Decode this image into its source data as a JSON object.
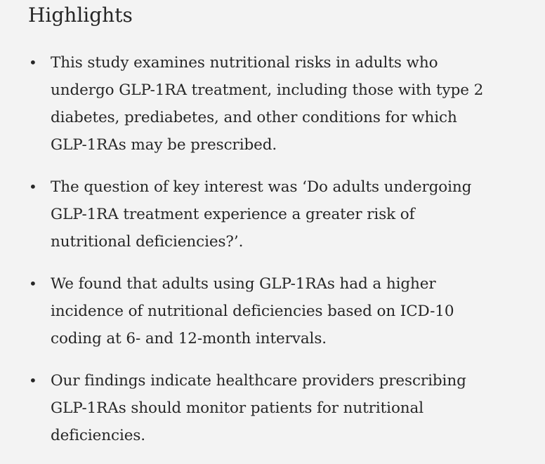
{
  "heading": "Highlights",
  "bullet_glyph": "•",
  "highlights": [
    {
      "lines": [
        "This study examines nutritional risks in adults who",
        "undergo GLP-1RA treatment, including those with type 2",
        "diabetes, prediabetes, and other conditions for which",
        "GLP-1RAs may be prescribed."
      ]
    },
    {
      "lines": [
        "The question of key interest was ‘Do adults undergoing",
        "GLP-1RA treatment experience a greater risk of",
        "nutritional deficiencies?’."
      ]
    },
    {
      "lines": [
        "We found that adults using GLP-1RAs had a higher",
        "incidence of nutritional deficiencies based on ICD-10",
        "coding at 6- and 12-month intervals."
      ]
    },
    {
      "lines": [
        "Our findings indicate healthcare providers prescribing",
        "GLP-1RAs should monitor patients for nutritional",
        "deficiencies."
      ]
    }
  ]
}
